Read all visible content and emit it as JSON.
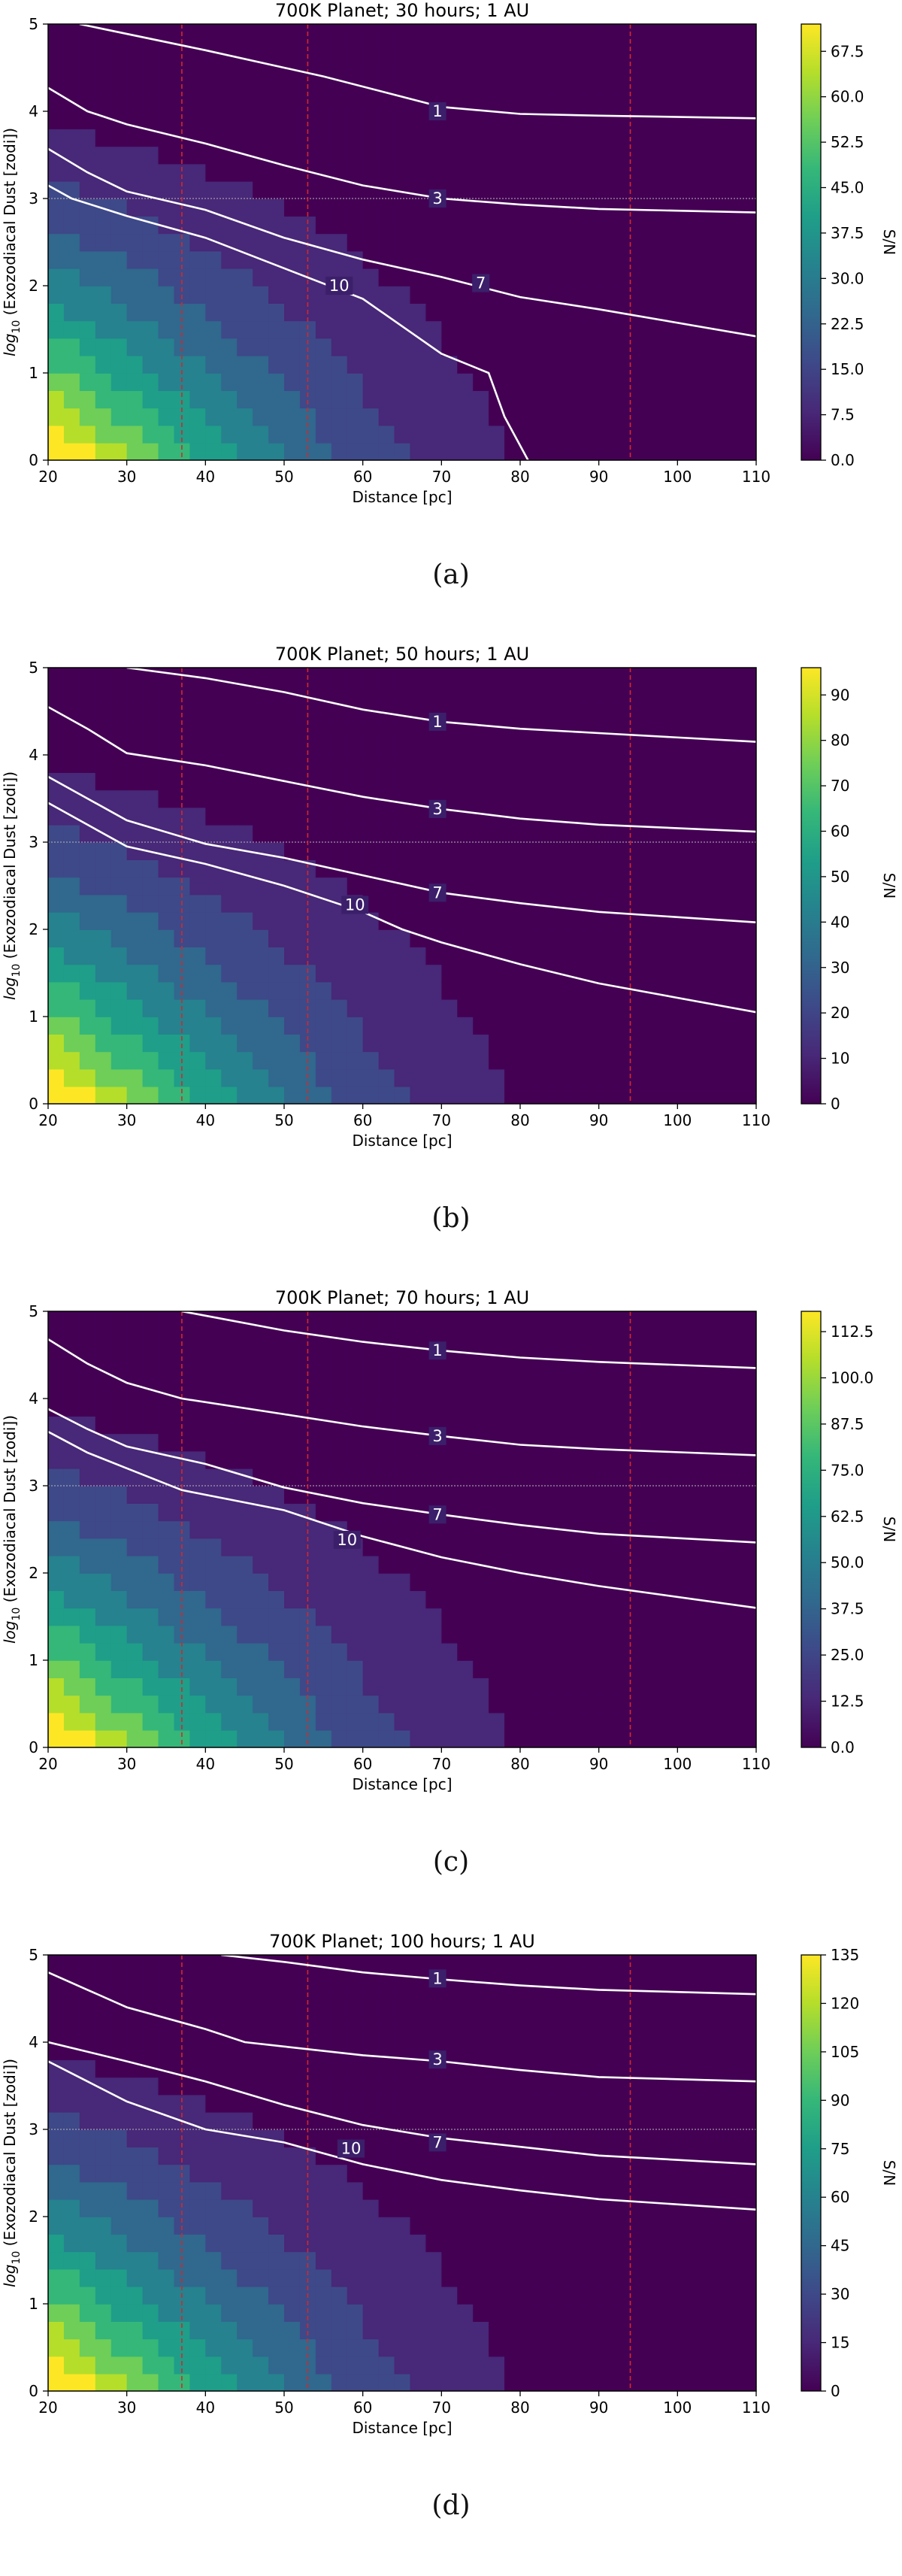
{
  "colorbar_label": "S/N",
  "chart_data": [
    {
      "type": "heatmap",
      "title": "700K Planet; 30 hours; 1 AU",
      "xlabel": "Distance [pc]",
      "ylabel_prefix": "log",
      "ylabel_sub": "10",
      "ylabel_rest": " (Exozodiacal Dust [zodi])",
      "xlim": [
        20,
        110
      ],
      "ylim": [
        0,
        5
      ],
      "xticks": [
        20,
        30,
        40,
        50,
        60,
        70,
        80,
        90,
        100,
        110
      ],
      "yticks": [
        0,
        1,
        2,
        3,
        4,
        5
      ],
      "colorbar_ticks": [
        0.0,
        7.5,
        15.0,
        22.5,
        30.0,
        37.5,
        45.0,
        52.5,
        60.0,
        67.5
      ],
      "colorbar_tick_labels": [
        "0.0",
        "7.5",
        "15.0",
        "22.5",
        "30.0",
        "37.5",
        "45.0",
        "52.5",
        "60.0",
        "67.5"
      ],
      "colorbar_max": 72,
      "vlines": [
        37,
        53,
        94
      ],
      "hline": 3,
      "contours": [
        {
          "label": "1",
          "label_at": [
            69.5,
            4.0
          ],
          "points": [
            [
              24,
              5.0
            ],
            [
              40,
              4.7
            ],
            [
              55,
              4.4
            ],
            [
              70,
              4.05
            ],
            [
              80,
              3.97
            ],
            [
              90,
              3.95
            ],
            [
              110,
              3.92
            ]
          ]
        },
        {
          "label": "3",
          "label_at": [
            69.5,
            3.0
          ],
          "points": [
            [
              20,
              4.27
            ],
            [
              25,
              4.0
            ],
            [
              30,
              3.85
            ],
            [
              40,
              3.63
            ],
            [
              50,
              3.38
            ],
            [
              60,
              3.15
            ],
            [
              70,
              3.0
            ],
            [
              80,
              2.93
            ],
            [
              90,
              2.88
            ],
            [
              110,
              2.84
            ]
          ]
        },
        {
          "label": "7",
          "label_at": [
            75,
            2.03
          ],
          "points": [
            [
              20,
              3.57
            ],
            [
              25,
              3.3
            ],
            [
              30,
              3.08
            ],
            [
              40,
              2.87
            ],
            [
              50,
              2.55
            ],
            [
              60,
              2.3
            ],
            [
              70,
              2.1
            ],
            [
              80,
              1.87
            ],
            [
              90,
              1.73
            ],
            [
              110,
              1.42
            ]
          ]
        },
        {
          "label": "10",
          "label_at": [
            57,
            2.0
          ],
          "points": [
            [
              20,
              3.15
            ],
            [
              23,
              3.0
            ],
            [
              30,
              2.8
            ],
            [
              40,
              2.55
            ],
            [
              50,
              2.2
            ],
            [
              60,
              1.85
            ],
            [
              70,
              1.22
            ],
            [
              76,
              1.0
            ],
            [
              78,
              0.5
            ],
            [
              81,
              0.0
            ]
          ]
        }
      ]
    },
    {
      "type": "heatmap",
      "title": "700K Planet; 50 hours; 1 AU",
      "xlabel": "Distance [pc]",
      "ylabel_prefix": "log",
      "ylabel_sub": "10",
      "ylabel_rest": " (Exozodiacal Dust [zodi])",
      "xlim": [
        20,
        110
      ],
      "ylim": [
        0,
        5
      ],
      "xticks": [
        20,
        30,
        40,
        50,
        60,
        70,
        80,
        90,
        100,
        110
      ],
      "yticks": [
        0,
        1,
        2,
        3,
        4,
        5
      ],
      "colorbar_ticks": [
        0,
        10,
        20,
        30,
        40,
        50,
        60,
        70,
        80,
        90
      ],
      "colorbar_tick_labels": [
        "0",
        "10",
        "20",
        "30",
        "40",
        "50",
        "60",
        "70",
        "80",
        "90"
      ],
      "colorbar_max": 96,
      "vlines": [
        37,
        53,
        94
      ],
      "hline": 3,
      "contours": [
        {
          "label": "1",
          "label_at": [
            69.5,
            4.38
          ],
          "points": [
            [
              30,
              5.0
            ],
            [
              40,
              4.88
            ],
            [
              50,
              4.72
            ],
            [
              60,
              4.52
            ],
            [
              70,
              4.38
            ],
            [
              80,
              4.3
            ],
            [
              90,
              4.25
            ],
            [
              110,
              4.15
            ]
          ]
        },
        {
          "label": "3",
          "label_at": [
            69.5,
            3.38
          ],
          "points": [
            [
              20,
              4.55
            ],
            [
              25,
              4.3
            ],
            [
              30,
              4.02
            ],
            [
              40,
              3.88
            ],
            [
              50,
              3.7
            ],
            [
              60,
              3.52
            ],
            [
              70,
              3.38
            ],
            [
              80,
              3.27
            ],
            [
              90,
              3.2
            ],
            [
              110,
              3.12
            ]
          ]
        },
        {
          "label": "7",
          "label_at": [
            69.5,
            2.42
          ],
          "points": [
            [
              20,
              3.75
            ],
            [
              25,
              3.5
            ],
            [
              30,
              3.25
            ],
            [
              40,
              2.98
            ],
            [
              50,
              2.82
            ],
            [
              60,
              2.62
            ],
            [
              70,
              2.42
            ],
            [
              80,
              2.3
            ],
            [
              90,
              2.2
            ],
            [
              110,
              2.08
            ]
          ]
        },
        {
          "label": "10",
          "label_at": [
            59,
            2.28
          ],
          "points": [
            [
              20,
              3.45
            ],
            [
              25,
              3.2
            ],
            [
              30,
              2.95
            ],
            [
              40,
              2.75
            ],
            [
              50,
              2.5
            ],
            [
              60,
              2.2
            ],
            [
              65,
              2.0
            ],
            [
              70,
              1.85
            ],
            [
              80,
              1.6
            ],
            [
              90,
              1.38
            ],
            [
              110,
              1.05
            ]
          ]
        }
      ]
    },
    {
      "type": "heatmap",
      "title": "700K Planet; 70 hours; 1 AU",
      "xlabel": "Distance [pc]",
      "ylabel_prefix": "log",
      "ylabel_sub": "10",
      "ylabel_rest": " (Exozodiacal Dust [zodi])",
      "xlim": [
        20,
        110
      ],
      "ylim": [
        0,
        5
      ],
      "xticks": [
        20,
        30,
        40,
        50,
        60,
        70,
        80,
        90,
        100,
        110
      ],
      "yticks": [
        0,
        1,
        2,
        3,
        4,
        5
      ],
      "colorbar_ticks": [
        0.0,
        12.5,
        25.0,
        37.5,
        50.0,
        62.5,
        75.0,
        87.5,
        100.0,
        112.5
      ],
      "colorbar_tick_labels": [
        "0.0",
        "12.5",
        "25.0",
        "37.5",
        "50.0",
        "62.5",
        "75.0",
        "87.5",
        "100.0",
        "112.5"
      ],
      "colorbar_max": 118,
      "vlines": [
        37,
        53,
        94
      ],
      "hline": 3,
      "contours": [
        {
          "label": "1",
          "label_at": [
            69.5,
            4.55
          ],
          "points": [
            [
              37,
              5.0
            ],
            [
              40,
              4.95
            ],
            [
              50,
              4.78
            ],
            [
              60,
              4.65
            ],
            [
              70,
              4.55
            ],
            [
              80,
              4.47
            ],
            [
              90,
              4.42
            ],
            [
              110,
              4.35
            ]
          ]
        },
        {
          "label": "3",
          "label_at": [
            69.5,
            3.57
          ],
          "points": [
            [
              20,
              4.68
            ],
            [
              25,
              4.4
            ],
            [
              30,
              4.18
            ],
            [
              37,
              4.0
            ],
            [
              50,
              3.82
            ],
            [
              60,
              3.68
            ],
            [
              70,
              3.57
            ],
            [
              80,
              3.47
            ],
            [
              90,
              3.42
            ],
            [
              110,
              3.35
            ]
          ]
        },
        {
          "label": "7",
          "label_at": [
            69.5,
            2.67
          ],
          "points": [
            [
              20,
              3.88
            ],
            [
              25,
              3.65
            ],
            [
              30,
              3.45
            ],
            [
              40,
              3.25
            ],
            [
              50,
              2.98
            ],
            [
              60,
              2.8
            ],
            [
              70,
              2.67
            ],
            [
              80,
              2.55
            ],
            [
              90,
              2.45
            ],
            [
              110,
              2.35
            ]
          ]
        },
        {
          "label": "10",
          "label_at": [
            58,
            2.38
          ],
          "points": [
            [
              20,
              3.62
            ],
            [
              25,
              3.38
            ],
            [
              30,
              3.2
            ],
            [
              37,
              2.95
            ],
            [
              50,
              2.72
            ],
            [
              60,
              2.42
            ],
            [
              70,
              2.18
            ],
            [
              80,
              2.0
            ],
            [
              90,
              1.85
            ],
            [
              110,
              1.6
            ]
          ]
        }
      ]
    },
    {
      "type": "heatmap",
      "title": "700K Planet; 100 hours; 1 AU",
      "xlabel": "Distance [pc]",
      "ylabel_prefix": "log",
      "ylabel_sub": "10",
      "ylabel_rest": " (Exozodiacal Dust [zodi])",
      "xlim": [
        20,
        110
      ],
      "ylim": [
        0,
        5
      ],
      "xticks": [
        20,
        30,
        40,
        50,
        60,
        70,
        80,
        90,
        100,
        110
      ],
      "yticks": [
        0,
        1,
        2,
        3,
        4,
        5
      ],
      "colorbar_ticks": [
        0,
        15,
        30,
        45,
        60,
        75,
        90,
        105,
        120,
        135
      ],
      "colorbar_tick_labels": [
        "0",
        "15",
        "30",
        "45",
        "60",
        "75",
        "90",
        "105",
        "120",
        "135"
      ],
      "colorbar_max": 135,
      "vlines": [
        37,
        53,
        94
      ],
      "hline": 3,
      "contours": [
        {
          "label": "1",
          "label_at": [
            69.5,
            4.73
          ],
          "points": [
            [
              42,
              5.0
            ],
            [
              50,
              4.92
            ],
            [
              60,
              4.8
            ],
            [
              70,
              4.72
            ],
            [
              80,
              4.65
            ],
            [
              90,
              4.6
            ],
            [
              110,
              4.55
            ]
          ]
        },
        {
          "label": "3",
          "label_at": [
            69.5,
            3.8
          ],
          "points": [
            [
              20,
              4.8
            ],
            [
              25,
              4.6
            ],
            [
              30,
              4.4
            ],
            [
              40,
              4.15
            ],
            [
              45,
              4.0
            ],
            [
              50,
              3.95
            ],
            [
              60,
              3.85
            ],
            [
              70,
              3.78
            ],
            [
              80,
              3.68
            ],
            [
              90,
              3.6
            ],
            [
              110,
              3.55
            ]
          ]
        },
        {
          "label": "7",
          "label_at": [
            69.5,
            2.85
          ],
          "points": [
            [
              20,
              4.0
            ],
            [
              30,
              3.78
            ],
            [
              40,
              3.55
            ],
            [
              50,
              3.28
            ],
            [
              60,
              3.05
            ],
            [
              70,
              2.9
            ],
            [
              80,
              2.8
            ],
            [
              90,
              2.7
            ],
            [
              110,
              2.6
            ]
          ]
        },
        {
          "label": "10",
          "label_at": [
            58.5,
            2.78
          ],
          "points": [
            [
              20,
              3.78
            ],
            [
              25,
              3.55
            ],
            [
              30,
              3.32
            ],
            [
              40,
              3.0
            ],
            [
              50,
              2.85
            ],
            [
              60,
              2.6
            ],
            [
              70,
              2.42
            ],
            [
              80,
              2.3
            ],
            [
              90,
              2.2
            ],
            [
              110,
              2.08
            ]
          ]
        }
      ]
    }
  ],
  "captions": [
    "(a)",
    "(b)",
    "(c)",
    "(d)"
  ]
}
